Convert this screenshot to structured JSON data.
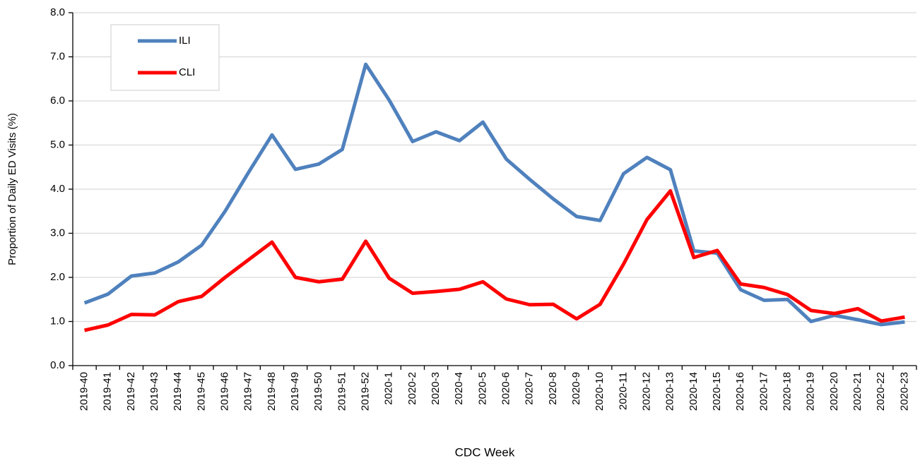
{
  "chart_data": {
    "type": "line",
    "x_label": "CDC Week",
    "y_label": "Proportion of Daily ED Visits (%)",
    "categories": [
      "2019-40",
      "2019-41",
      "2019-42",
      "2019-43",
      "2019-44",
      "2019-45",
      "2019-46",
      "2019-47",
      "2019-48",
      "2019-49",
      "2019-50",
      "2019-51",
      "2019-52",
      "2020-1",
      "2020-2",
      "2020-3",
      "2020-4",
      "2020-5",
      "2020-6",
      "2020-7",
      "2020-8",
      "2020-9",
      "2020-10",
      "2020-11",
      "2020-12",
      "2020-13",
      "2020-14",
      "2020-15",
      "2020-16",
      "2020-17",
      "2020-18",
      "2020-19",
      "2020-20",
      "2020-21",
      "2020-22",
      "2020-23"
    ],
    "series": [
      {
        "name": "ILI",
        "color": "#4f81bd",
        "values": [
          1.42,
          1.62,
          2.03,
          2.1,
          2.35,
          2.73,
          3.5,
          4.38,
          5.23,
          4.45,
          4.57,
          4.9,
          6.83,
          6.02,
          5.08,
          5.3,
          5.1,
          5.52,
          4.68,
          4.22,
          3.78,
          3.38,
          3.29,
          4.35,
          4.72,
          4.44,
          2.6,
          2.55,
          1.72,
          1.48,
          1.5,
          1.0,
          1.14,
          1.04,
          0.93,
          0.99
        ]
      },
      {
        "name": "CLI",
        "color": "#ff0000",
        "values": [
          0.8,
          0.92,
          1.16,
          1.15,
          1.45,
          1.57,
          2.0,
          2.4,
          2.8,
          2.0,
          1.9,
          1.96,
          2.82,
          1.98,
          1.64,
          1.68,
          1.73,
          1.9,
          1.51,
          1.38,
          1.39,
          1.06,
          1.39,
          2.3,
          3.31,
          3.96,
          2.45,
          2.61,
          1.85,
          1.77,
          1.61,
          1.25,
          1.18,
          1.29,
          1.01,
          1.1
        ]
      }
    ],
    "ylim": [
      0,
      8
    ],
    "yticks": [
      {
        "value": 0,
        "label": "0.0"
      },
      {
        "value": 1,
        "label": "1.0"
      },
      {
        "value": 2,
        "label": "2.0"
      },
      {
        "value": 3,
        "label": "3.0"
      },
      {
        "value": 4,
        "label": "4.0"
      },
      {
        "value": 5,
        "label": "5.0"
      },
      {
        "value": 6,
        "label": "6.0"
      },
      {
        "value": 7,
        "label": "7.0"
      },
      {
        "value": 8,
        "label": "8.0"
      }
    ],
    "grid": true,
    "legend": "top-left"
  }
}
